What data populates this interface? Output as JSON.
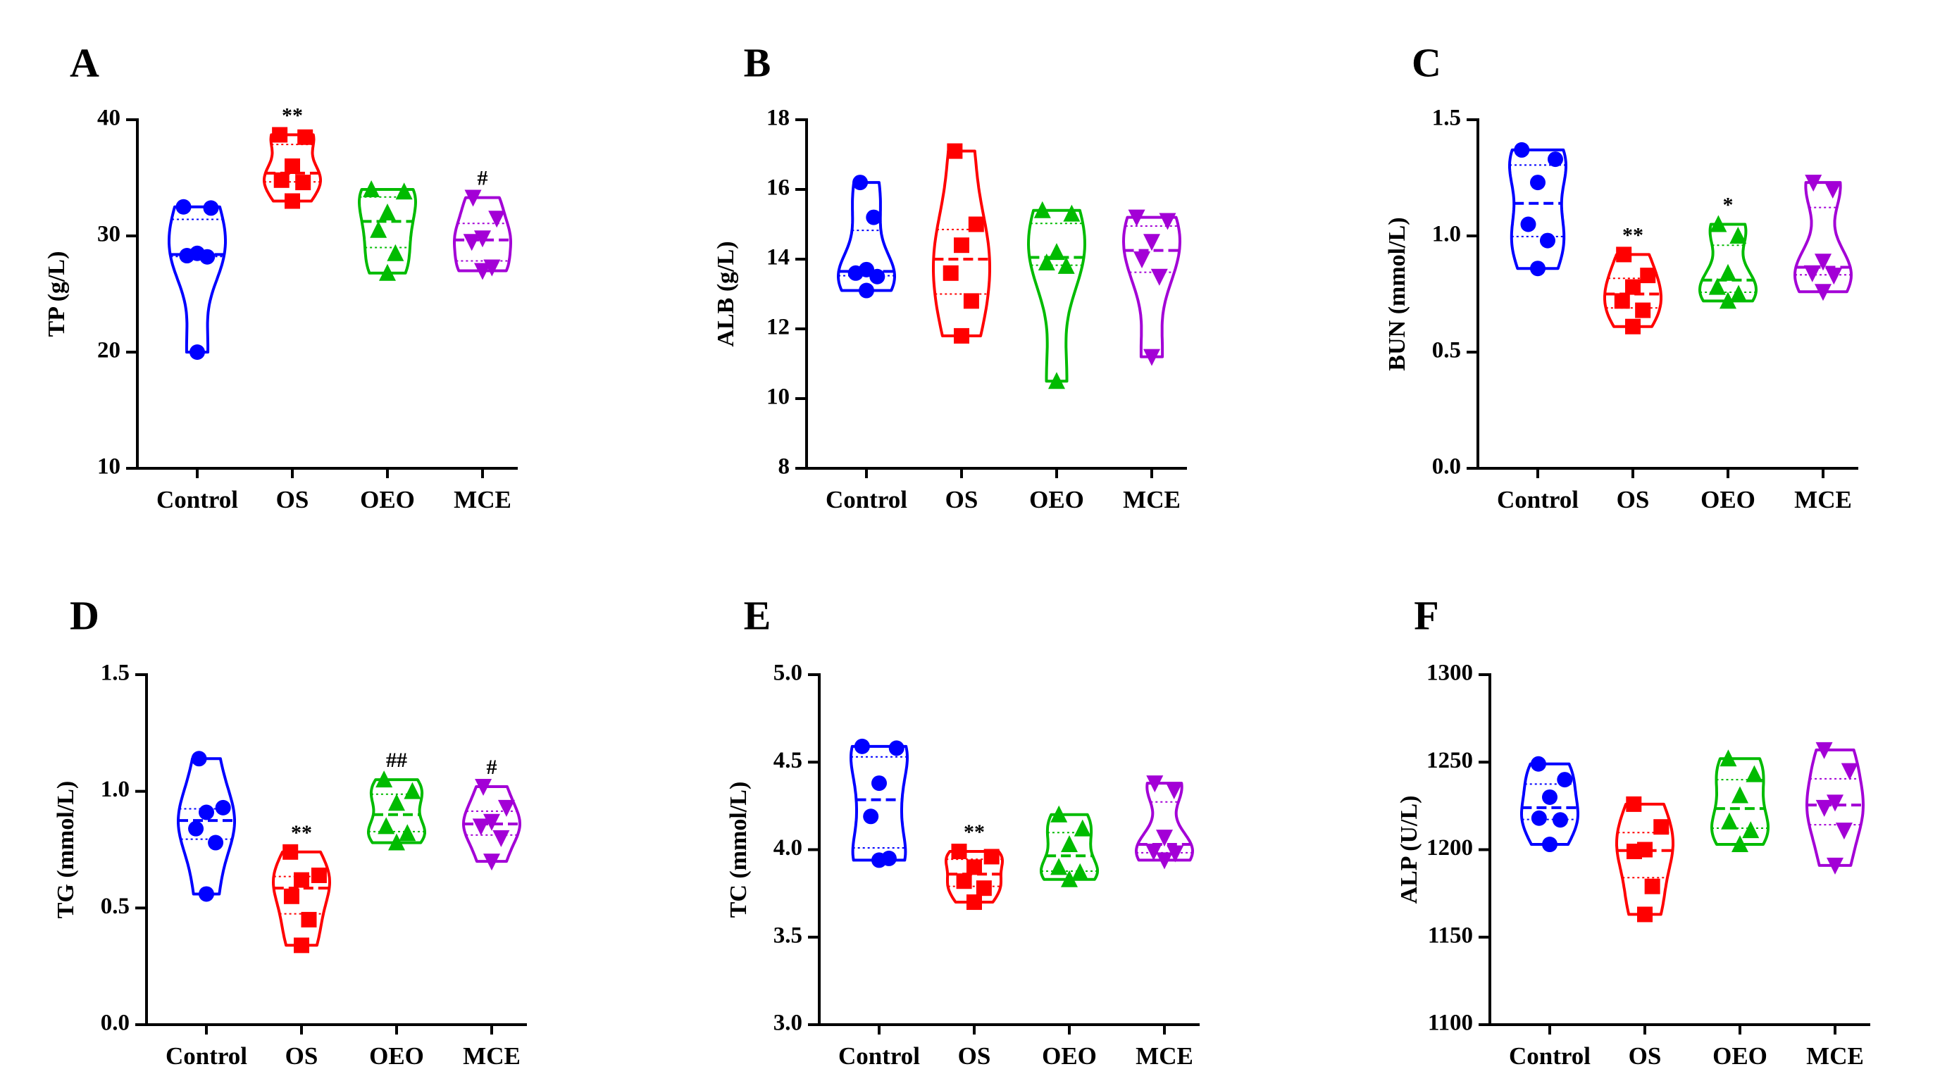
{
  "figure": {
    "groups": [
      "Control",
      "OS",
      "OEO",
      "MCE"
    ],
    "colors": {
      "Control": "#0000ff",
      "OS": "#ff0000",
      "OEO": "#00bb00",
      "MCE": "#a300d6"
    },
    "markers": {
      "Control": "circle",
      "OS": "square",
      "OEO": "triangle-up",
      "MCE": "triangle-down"
    }
  },
  "chart_data": [
    {
      "panel": "A",
      "type": "violin",
      "ylabel": "TP (g/L)",
      "ylim": [
        10,
        40
      ],
      "yticks": [
        10,
        20,
        30,
        40
      ],
      "series": [
        {
          "name": "Control",
          "values": [
            32.5,
            32.4,
            28.5,
            28.3,
            28.2,
            20.0
          ],
          "annotation": ""
        },
        {
          "name": "OS",
          "values": [
            38.7,
            38.5,
            36.0,
            34.8,
            34.6,
            33.0
          ],
          "annotation": "**"
        },
        {
          "name": "OEO",
          "values": [
            34.0,
            33.8,
            32.0,
            30.5,
            28.5,
            26.8
          ],
          "annotation": ""
        },
        {
          "name": "MCE",
          "values": [
            33.3,
            31.5,
            29.8,
            29.5,
            27.3,
            27.0
          ],
          "annotation": "#"
        }
      ]
    },
    {
      "panel": "B",
      "type": "violin",
      "ylabel": "ALB (g/L)",
      "ylim": [
        8,
        18
      ],
      "yticks": [
        8,
        10,
        12,
        14,
        16,
        18
      ],
      "series": [
        {
          "name": "Control",
          "values": [
            16.2,
            15.2,
            13.7,
            13.6,
            13.5,
            13.1
          ],
          "annotation": ""
        },
        {
          "name": "OS",
          "values": [
            17.1,
            15.0,
            14.4,
            13.6,
            12.8,
            11.8
          ],
          "annotation": ""
        },
        {
          "name": "OEO",
          "values": [
            15.4,
            15.3,
            14.2,
            13.9,
            13.8,
            10.5
          ],
          "annotation": ""
        },
        {
          "name": "MCE",
          "values": [
            15.2,
            15.1,
            14.5,
            14.0,
            13.5,
            11.2
          ],
          "annotation": ""
        }
      ]
    },
    {
      "panel": "C",
      "type": "violin",
      "ylabel": "BUN (mmol/L)",
      "ylim": [
        0.0,
        1.5
      ],
      "yticks": [
        0.0,
        0.5,
        1.0,
        1.5
      ],
      "tick_decimals": 1,
      "series": [
        {
          "name": "Control",
          "values": [
            1.37,
            1.33,
            1.23,
            1.05,
            0.98,
            0.86
          ],
          "annotation": ""
        },
        {
          "name": "OS",
          "values": [
            0.92,
            0.83,
            0.78,
            0.72,
            0.68,
            0.61
          ],
          "annotation": "**"
        },
        {
          "name": "OEO",
          "values": [
            1.05,
            1.0,
            0.84,
            0.78,
            0.75,
            0.72
          ],
          "annotation": "*"
        },
        {
          "name": "MCE",
          "values": [
            1.23,
            1.2,
            0.89,
            0.84,
            0.83,
            0.76
          ],
          "annotation": ""
        }
      ]
    },
    {
      "panel": "D",
      "type": "violin",
      "ylabel": "TG (mmol/L)",
      "ylim": [
        0.0,
        1.5
      ],
      "yticks": [
        0.0,
        0.5,
        1.0,
        1.5
      ],
      "tick_decimals": 1,
      "series": [
        {
          "name": "Control",
          "values": [
            1.14,
            0.93,
            0.91,
            0.84,
            0.78,
            0.56
          ],
          "annotation": ""
        },
        {
          "name": "OS",
          "values": [
            0.74,
            0.64,
            0.62,
            0.55,
            0.45,
            0.34
          ],
          "annotation": "**"
        },
        {
          "name": "OEO",
          "values": [
            1.05,
            1.0,
            0.95,
            0.85,
            0.82,
            0.78
          ],
          "annotation": "##"
        },
        {
          "name": "MCE",
          "values": [
            1.02,
            0.93,
            0.87,
            0.85,
            0.8,
            0.7
          ],
          "annotation": "#"
        }
      ]
    },
    {
      "panel": "E",
      "type": "violin",
      "ylabel": "TC (mmol/L)",
      "ylim": [
        3.0,
        5.0
      ],
      "yticks": [
        3.0,
        3.5,
        4.0,
        4.5,
        5.0
      ],
      "tick_decimals": 1,
      "series": [
        {
          "name": "Control",
          "values": [
            4.59,
            4.58,
            4.38,
            4.19,
            3.95,
            3.94
          ],
          "annotation": ""
        },
        {
          "name": "OS",
          "values": [
            3.99,
            3.96,
            3.9,
            3.82,
            3.78,
            3.7
          ],
          "annotation": "**"
        },
        {
          "name": "OEO",
          "values": [
            4.2,
            4.12,
            4.03,
            3.9,
            3.87,
            3.83
          ],
          "annotation": ""
        },
        {
          "name": "MCE",
          "values": [
            4.38,
            4.34,
            4.07,
            3.99,
            3.98,
            3.94
          ],
          "annotation": ""
        }
      ]
    },
    {
      "panel": "F",
      "type": "violin",
      "ylabel": "ALP (U/L)",
      "ylim": [
        1100,
        1300
      ],
      "yticks": [
        1100,
        1150,
        1200,
        1250,
        1300
      ],
      "series": [
        {
          "name": "Control",
          "values": [
            1249,
            1240,
            1230,
            1218,
            1217,
            1203
          ],
          "annotation": ""
        },
        {
          "name": "OS",
          "values": [
            1226,
            1213,
            1200,
            1199,
            1179,
            1163
          ],
          "annotation": ""
        },
        {
          "name": "OEO",
          "values": [
            1252,
            1243,
            1231,
            1216,
            1211,
            1203
          ],
          "annotation": ""
        },
        {
          "name": "MCE",
          "values": [
            1257,
            1245,
            1227,
            1224,
            1211,
            1191
          ],
          "annotation": ""
        }
      ]
    }
  ]
}
